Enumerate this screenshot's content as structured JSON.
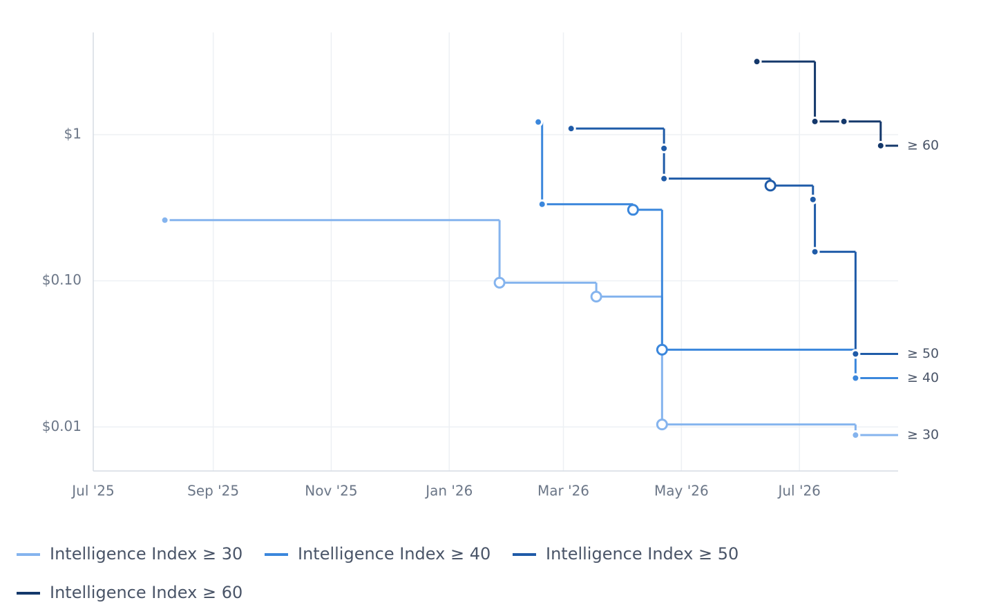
{
  "chart_data": {
    "type": "step",
    "log_y": true,
    "grid": true,
    "xlim": [
      "2025-07-01",
      "2026-08-21"
    ],
    "xticks": [
      {
        "value": "2025-07-01",
        "label": "Jul '25"
      },
      {
        "value": "2025-09-01",
        "label": "Sep '25"
      },
      {
        "value": "2025-11-01",
        "label": "Nov '25"
      },
      {
        "value": "2026-01-01",
        "label": "Jan '26"
      },
      {
        "value": "2026-03-01",
        "label": "Mar '26"
      },
      {
        "value": "2026-05-01",
        "label": "May '26"
      },
      {
        "value": "2026-07-01",
        "label": "Jul '26"
      }
    ],
    "ylim": [
      0.005,
      5
    ],
    "yticks": [
      {
        "value": 1,
        "label": "$1"
      },
      {
        "value": 0.1,
        "label": "$0.10"
      },
      {
        "value": 0.01,
        "label": "$0.01"
      }
    ],
    "series": [
      {
        "name": "Intelligence Index ≥ 30",
        "end_label": "≥ 30",
        "color": "#85b4ee",
        "x": [
          "2025-08-07",
          "2026-01-27",
          "2026-03-18",
          "2026-04-21",
          "2026-07-30"
        ],
        "values": [
          0.26,
          0.097,
          0.078,
          0.0104,
          0.0088
        ],
        "marker_styles": [
          "filled",
          "hollow",
          "hollow",
          "hollow",
          "filled"
        ]
      },
      {
        "name": "Intelligence Index ≥ 40",
        "end_label": "≥ 40",
        "color": "#3b87dc",
        "x": [
          "2026-02-16",
          "2026-02-18",
          "2026-04-06",
          "2026-04-21",
          "2026-07-30"
        ],
        "values": [
          1.22,
          0.334,
          0.306,
          0.0338,
          0.0216
        ],
        "marker_styles": [
          "filled",
          "filled",
          "hollow",
          "hollow",
          "filled"
        ]
      },
      {
        "name": "Intelligence Index ≥ 50",
        "end_label": "≥ 50",
        "color": "#1f5ba8",
        "x": [
          "2026-03-05",
          "2026-04-22",
          "2026-04-22",
          "2026-06-16",
          "2026-07-08",
          "2026-07-09",
          "2026-07-30"
        ],
        "values": [
          1.1,
          0.805,
          0.5,
          0.448,
          0.36,
          0.158,
          0.0316
        ],
        "marker_styles": [
          "filled",
          "filled",
          "filled",
          "hollow",
          "filled",
          "filled",
          "filled"
        ]
      },
      {
        "name": "Intelligence Index ≥ 60",
        "end_label": "≥ 60",
        "color": "#14386b",
        "x": [
          "2026-06-09",
          "2026-07-09",
          "2026-07-24",
          "2026-08-12"
        ],
        "values": [
          3.16,
          1.23,
          1.23,
          0.84
        ],
        "marker_styles": [
          "filled",
          "filled",
          "filled",
          "filled"
        ]
      }
    ]
  }
}
